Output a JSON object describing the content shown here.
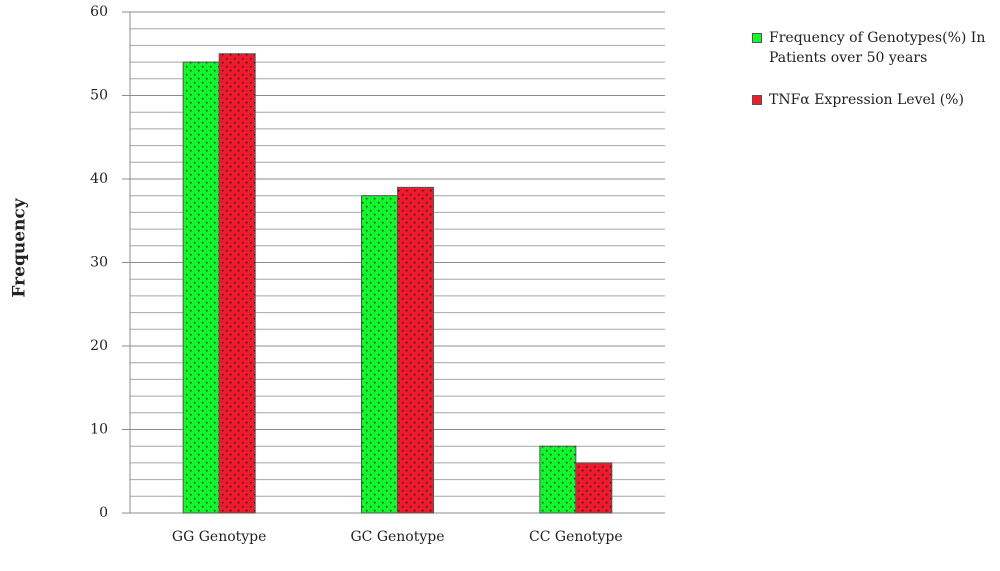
{
  "chart_data": {
    "type": "bar",
    "y_label": "Frequency",
    "categories": [
      "GG Genotype",
      "GC Genotype",
      "CC Genotype"
    ],
    "series": [
      {
        "name": "Frequency of Genotypes(%) In Patients over 50 years",
        "color": "#11f72c",
        "values": [
          54,
          38,
          8
        ]
      },
      {
        "name": "TNFα Expression Level (%)",
        "color": "#ec1c2c",
        "values": [
          55,
          39,
          6
        ]
      }
    ],
    "ylim": [
      0,
      60
    ],
    "yticks": [
      0,
      10,
      20,
      30,
      40,
      50,
      60
    ],
    "minor_yticks": [
      2,
      4,
      6,
      8,
      12,
      14,
      16,
      18,
      22,
      24,
      26,
      28,
      32,
      34,
      36,
      38,
      42,
      44,
      46,
      48,
      52,
      54,
      56,
      58
    ],
    "grid": true,
    "legend": "right"
  }
}
